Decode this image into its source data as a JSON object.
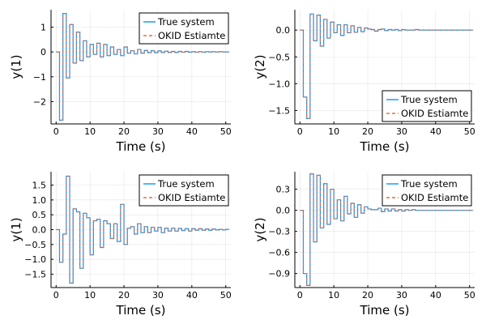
{
  "colors": {
    "true_system": "#009af9",
    "okid_estimate": "#e26f46"
  },
  "chart_data": [
    {
      "type": "line",
      "step": true,
      "xlabel": "Time (s)",
      "ylabel": "y(1)",
      "xlim": [
        -1.5,
        51.5
      ],
      "ylim": [
        -2.9,
        1.7
      ],
      "xticks": [
        0,
        10,
        20,
        30,
        40,
        50
      ],
      "yticks": [
        -2,
        -1,
        0,
        1
      ],
      "ytick_labels": [
        "−2",
        "−1",
        "0",
        "1"
      ],
      "legend": "top-right",
      "grid": true,
      "x": [
        0,
        1,
        2,
        3,
        4,
        5,
        6,
        7,
        8,
        9,
        10,
        11,
        12,
        13,
        14,
        15,
        16,
        17,
        18,
        19,
        20,
        21,
        22,
        23,
        24,
        25,
        26,
        27,
        28,
        29,
        30,
        31,
        32,
        33,
        34,
        35,
        36,
        37,
        38,
        39,
        40,
        41,
        42,
        43,
        44,
        45,
        46,
        47,
        48,
        49,
        50
      ],
      "series": [
        {
          "name": "True system",
          "values": [
            0,
            -2.75,
            1.55,
            -1.05,
            1.1,
            -0.45,
            0.8,
            -0.35,
            0.45,
            -0.2,
            0.3,
            -0.1,
            0.35,
            -0.2,
            0.3,
            -0.15,
            0.2,
            -0.1,
            0.1,
            -0.15,
            0.2,
            -0.05,
            0.05,
            -0.08,
            0.1,
            -0.05,
            0.06,
            -0.03,
            0.05,
            -0.03,
            0.04,
            -0.02,
            0.03,
            -0.02,
            0.02,
            -0.02,
            0.02,
            -0.01,
            0.02,
            -0.01,
            0.01,
            -0.01,
            0.01,
            -0.01,
            0.01,
            0,
            0.01,
            0,
            0.01,
            0,
            0
          ]
        },
        {
          "name": "OKID Estiamte",
          "values": [
            0,
            -2.75,
            1.55,
            -1.05,
            1.1,
            -0.45,
            0.8,
            -0.35,
            0.45,
            -0.2,
            0.3,
            -0.1,
            0.35,
            -0.2,
            0.3,
            -0.15,
            0.2,
            -0.1,
            0.1,
            -0.15,
            0.2,
            -0.05,
            0.05,
            -0.08,
            0.1,
            -0.05,
            0.06,
            -0.03,
            0.05,
            -0.03,
            0.04,
            -0.02,
            0.03,
            -0.02,
            0.02,
            -0.02,
            0.02,
            -0.01,
            0.02,
            -0.01,
            0.01,
            -0.01,
            0.01,
            -0.01,
            0.01,
            0,
            0.01,
            0,
            0.01,
            0,
            0
          ]
        }
      ]
    },
    {
      "type": "line",
      "step": true,
      "xlabel": "Time (s)",
      "ylabel": "y(2)",
      "xlim": [
        -1.5,
        51.5
      ],
      "ylim": [
        -1.75,
        0.38
      ],
      "xticks": [
        0,
        10,
        20,
        30,
        40,
        50
      ],
      "yticks": [
        -1.5,
        -1.0,
        -0.5,
        0.0
      ],
      "ytick_labels": [
        "−1.5",
        "−1.0",
        "−0.5",
        "0.0"
      ],
      "legend": "bottom-right",
      "grid": true,
      "x": [
        0,
        1,
        2,
        3,
        4,
        5,
        6,
        7,
        8,
        9,
        10,
        11,
        12,
        13,
        14,
        15,
        16,
        17,
        18,
        19,
        20,
        21,
        22,
        23,
        24,
        25,
        26,
        27,
        28,
        29,
        30,
        31,
        32,
        33,
        34,
        35,
        36,
        37,
        38,
        39,
        40,
        41,
        42,
        43,
        44,
        45,
        46,
        47,
        48,
        49,
        50
      ],
      "series": [
        {
          "name": "True system",
          "values": [
            0,
            -1.25,
            -1.65,
            0.3,
            -0.2,
            0.28,
            -0.3,
            0.2,
            -0.15,
            0.15,
            -0.05,
            0.1,
            -0.1,
            0.1,
            -0.05,
            0.08,
            -0.04,
            0.05,
            -0.03,
            0.04,
            0.02,
            0.01,
            -0.02,
            0.01,
            0.02,
            -0.01,
            0.01,
            0,
            0.01,
            -0.01,
            0.01,
            0,
            0,
            0,
            0.01,
            0,
            0,
            0,
            0,
            0,
            0,
            0,
            0,
            0,
            0,
            0,
            0,
            0,
            0,
            0,
            0
          ]
        },
        {
          "name": "OKID Estiamte",
          "values": [
            0,
            -1.25,
            -1.65,
            0.3,
            -0.2,
            0.28,
            -0.3,
            0.2,
            -0.15,
            0.15,
            -0.05,
            0.1,
            -0.1,
            0.1,
            -0.05,
            0.08,
            -0.04,
            0.05,
            -0.03,
            0.04,
            0.02,
            0.01,
            -0.02,
            0.01,
            0.02,
            -0.01,
            0.01,
            0,
            0.01,
            -0.01,
            0.01,
            0,
            0,
            0,
            0.01,
            0,
            0,
            0,
            0,
            0,
            0,
            0,
            0,
            0,
            0,
            0,
            0,
            0,
            0,
            0,
            0
          ]
        }
      ]
    },
    {
      "type": "line",
      "step": true,
      "xlabel": "Time (s)",
      "ylabel": "y(1)",
      "xlim": [
        -1.5,
        51.5
      ],
      "ylim": [
        -1.95,
        1.95
      ],
      "xticks": [
        0,
        10,
        20,
        30,
        40,
        50
      ],
      "yticks": [
        -1.5,
        -1.0,
        -0.5,
        0.0,
        0.5,
        1.0,
        1.5
      ],
      "ytick_labels": [
        "−1.5",
        "−1.0",
        "−0.5",
        "0.0",
        "0.5",
        "1.0",
        "1.5"
      ],
      "legend": "top-right",
      "grid": true,
      "x": [
        0,
        1,
        2,
        3,
        4,
        5,
        6,
        7,
        8,
        9,
        10,
        11,
        12,
        13,
        14,
        15,
        16,
        17,
        18,
        19,
        20,
        21,
        22,
        23,
        24,
        25,
        26,
        27,
        28,
        29,
        30,
        31,
        32,
        33,
        34,
        35,
        36,
        37,
        38,
        39,
        40,
        41,
        42,
        43,
        44,
        45,
        46,
        47,
        48,
        49,
        50
      ],
      "series": [
        {
          "name": "True system",
          "values": [
            0,
            -1.1,
            -0.15,
            1.8,
            -1.8,
            0.7,
            0.6,
            -1.3,
            0.55,
            0.4,
            -0.85,
            0.3,
            0.35,
            -0.6,
            0.3,
            0.2,
            -0.3,
            0.2,
            -0.4,
            0.85,
            -0.5,
            0.05,
            0.1,
            -0.15,
            0.2,
            -0.1,
            0.1,
            -0.1,
            0.08,
            -0.05,
            0.08,
            -0.1,
            0.05,
            -0.05,
            0.05,
            -0.05,
            0.04,
            -0.03,
            0.03,
            -0.05,
            0.03,
            -0.02,
            0.03,
            -0.02,
            0.02,
            -0.02,
            0.02,
            -0.01,
            0.01,
            -0.01,
            0.01
          ]
        },
        {
          "name": "OKID Estiamte",
          "values": [
            0,
            -1.1,
            -0.15,
            1.8,
            -1.8,
            0.7,
            0.6,
            -1.3,
            0.55,
            0.4,
            -0.85,
            0.3,
            0.35,
            -0.6,
            0.3,
            0.2,
            -0.3,
            0.2,
            -0.4,
            0.85,
            -0.5,
            0.05,
            0.1,
            -0.15,
            0.2,
            -0.1,
            0.1,
            -0.1,
            0.08,
            -0.05,
            0.08,
            -0.1,
            0.05,
            -0.05,
            0.05,
            -0.05,
            0.04,
            -0.03,
            0.03,
            -0.05,
            0.03,
            -0.02,
            0.03,
            -0.02,
            0.02,
            -0.02,
            0.02,
            -0.01,
            0.01,
            -0.01,
            0.01
          ]
        }
      ]
    },
    {
      "type": "line",
      "step": true,
      "xlabel": "Time (s)",
      "ylabel": "y(2)",
      "xlim": [
        -1.5,
        51.5
      ],
      "ylim": [
        -1.1,
        0.55
      ],
      "xticks": [
        0,
        10,
        20,
        30,
        40,
        50
      ],
      "yticks": [
        -0.9,
        -0.6,
        -0.3,
        0.0,
        0.3
      ],
      "ytick_labels": [
        "−0.9",
        "−0.6",
        "−0.3",
        "0.0",
        "0.3"
      ],
      "legend": "top-right",
      "grid": true,
      "x": [
        0,
        1,
        2,
        3,
        4,
        5,
        6,
        7,
        8,
        9,
        10,
        11,
        12,
        13,
        14,
        15,
        16,
        17,
        18,
        19,
        20,
        21,
        22,
        23,
        24,
        25,
        26,
        27,
        28,
        29,
        30,
        31,
        32,
        33,
        34,
        35,
        36,
        37,
        38,
        39,
        40,
        41,
        42,
        43,
        44,
        45,
        46,
        47,
        48,
        49,
        50
      ],
      "series": [
        {
          "name": "True system",
          "values": [
            0,
            -0.9,
            -1.07,
            0.52,
            -0.45,
            0.5,
            -0.25,
            0.38,
            -0.2,
            0.3,
            -0.12,
            0.15,
            -0.15,
            0.2,
            -0.05,
            0.1,
            -0.1,
            0.08,
            -0.04,
            0.05,
            0.02,
            0.01,
            0.01,
            0.03,
            -0.02,
            0.02,
            -0.01,
            0.02,
            -0.01,
            0.01,
            -0.01,
            0.01,
            0,
            0.01,
            0,
            0,
            0,
            0,
            0,
            0,
            0,
            0,
            0,
            0,
            0,
            0,
            0,
            0,
            0,
            0,
            0
          ]
        },
        {
          "name": "OKID Estiamte",
          "values": [
            0,
            -0.9,
            -1.07,
            0.52,
            -0.45,
            0.5,
            -0.25,
            0.38,
            -0.2,
            0.3,
            -0.12,
            0.15,
            -0.15,
            0.2,
            -0.05,
            0.1,
            -0.1,
            0.08,
            -0.04,
            0.05,
            0.02,
            0.01,
            0.01,
            0.03,
            -0.02,
            0.02,
            -0.01,
            0.02,
            -0.01,
            0.01,
            -0.01,
            0.01,
            0,
            0.01,
            0,
            0,
            0,
            0,
            0,
            0,
            0,
            0,
            0,
            0,
            0,
            0,
            0,
            0,
            0,
            0,
            0
          ]
        }
      ]
    }
  ]
}
